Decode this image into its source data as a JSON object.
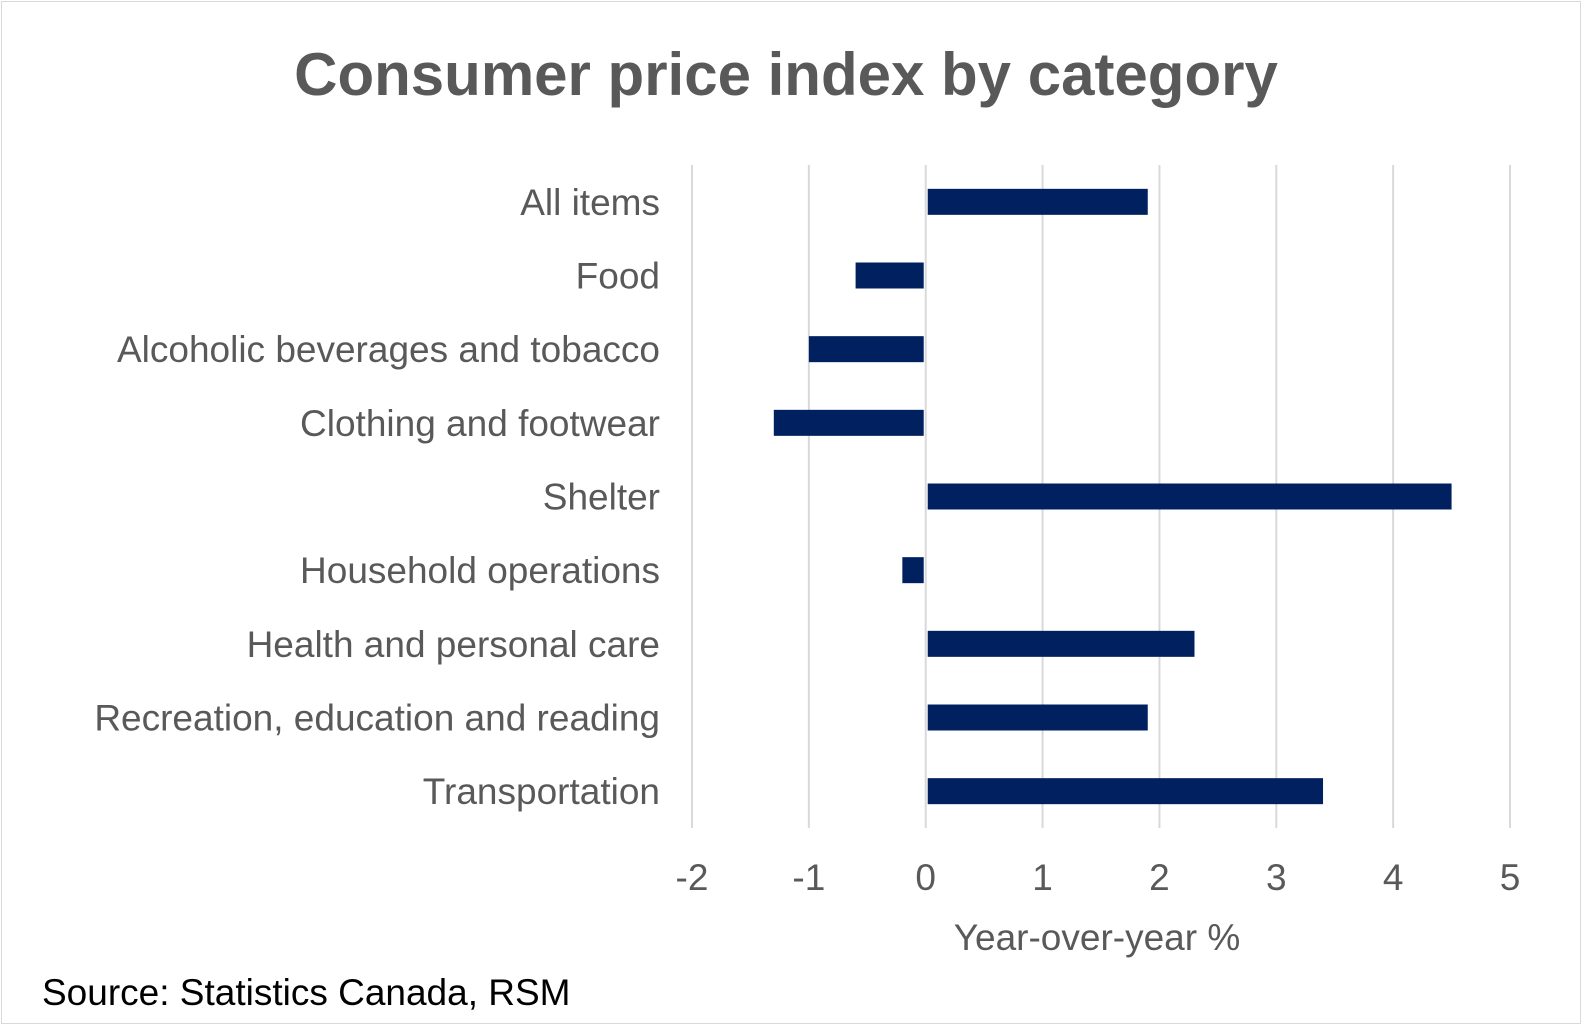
{
  "chart_data": {
    "type": "bar",
    "orientation": "horizontal",
    "title": "Consumer price index by category",
    "categories": [
      "All items",
      "Food",
      "Alcoholic beverages and tobacco",
      "Clothing and footwear",
      "Shelter",
      "Household operations",
      "Health and personal care",
      "Recreation, education and reading",
      "Transportation"
    ],
    "values": [
      1.9,
      -0.6,
      -1.0,
      -1.3,
      4.5,
      -0.2,
      2.3,
      1.9,
      3.4
    ],
    "xlabel": "Year-over-year %",
    "ylabel": "",
    "xlim": [
      -2,
      5
    ],
    "xticks": [
      "-2",
      "-1",
      "0",
      "1",
      "2",
      "3",
      "4",
      "5"
    ],
    "grid": true,
    "legend": "none",
    "colors": {
      "bar": "#002060",
      "text": "#595959",
      "grid": "#d9d9d9"
    }
  },
  "source": "Source: Statistics Canada, RSM"
}
